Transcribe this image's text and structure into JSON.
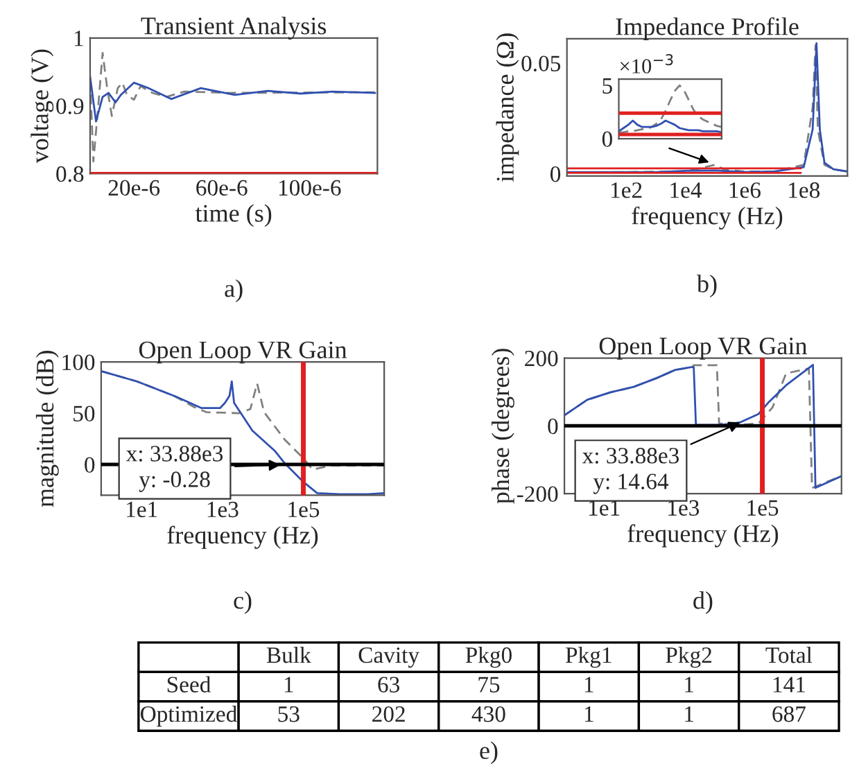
{
  "chart_data": [
    {
      "type": "line",
      "title": "Transient Analysis",
      "xlabel": "time (s)",
      "ylabel": "voltage (V)",
      "annotations": [
        "a)"
      ],
      "xlim": [
        0,
        0.000131
      ],
      "xticks": [
        {
          "value": 2e-05,
          "label": "20e-6"
        },
        {
          "value": 6e-05,
          "label": "60e-6"
        },
        {
          "value": 0.0001,
          "label": "100e-6"
        }
      ],
      "ylim": [
        0.8,
        1
      ],
      "yticks": [
        0.8,
        0.9,
        1
      ],
      "grid": false,
      "ref_lines": [
        {
          "axis": "y",
          "value": 0.8,
          "color": "#e02020"
        }
      ],
      "series": [
        {
          "color": "#808080",
          "line_style": "dashed",
          "x": [
            0,
            1.5e-06,
            3.6e-06,
            5.7e-06,
            7.8e-06,
            9.9e-06,
            1.26e-05,
            1.47e-05,
            1.68e-05,
            2e-05,
            2.3e-05,
            2.84e-05,
            3.47e-05,
            4.3e-05,
            6.4e-05,
            0.00013
          ],
          "values": [
            0.939,
            0.818,
            0.895,
            0.978,
            0.926,
            0.885,
            0.926,
            0.934,
            0.916,
            0.909,
            0.929,
            0.919,
            0.913,
            0.921,
            0.919,
            0.92
          ]
        },
        {
          "color": "#3050b0",
          "line_style": "solid",
          "x": [
            0,
            2.7e-06,
            5.7e-06,
            8.4e-06,
            1.16e-05,
            1.4e-05,
            2e-05,
            2.6e-05,
            3.7e-05,
            5.05e-05,
            6.6e-05,
            8.1e-05,
            9.6e-05,
            0.0001105,
            0.00013
          ],
          "values": [
            0.943,
            0.877,
            0.913,
            0.919,
            0.905,
            0.916,
            0.934,
            0.927,
            0.91,
            0.926,
            0.916,
            0.922,
            0.918,
            0.921,
            0.919
          ]
        }
      ]
    },
    {
      "type": "line",
      "title": "Impedance Profile",
      "xlabel": "frequency (Hz)",
      "ylabel": "impedance (Ω)",
      "annotations": [
        "b)"
      ],
      "log": "x",
      "xlim": [
        1,
        3000000000
      ],
      "xticks": [
        {
          "value": 100,
          "label": "1e2"
        },
        {
          "value": 10000,
          "label": "1e4"
        },
        {
          "value": 1000000,
          "label": "1e6"
        },
        {
          "value": 100000000,
          "label": "1e8"
        }
      ],
      "ylim": [
        -0.001,
        0.061
      ],
      "yticks": [
        0,
        0.05
      ],
      "grid": false,
      "series": [
        {
          "color": "#808080",
          "line_style": "dashed",
          "x": [
            1,
            10000,
            100000,
            200000,
            1000000,
            10000000,
            100000000,
            200000000,
            250000000,
            300000000,
            500000000,
            1000000000,
            3000000000
          ],
          "values": [
            0.0006,
            0.001,
            0.004,
            0.002,
            0.001,
            0.001,
            0.004,
            0.03,
            0.058,
            0.02,
            0.004,
            0.002,
            0.001
          ]
        },
        {
          "color": "#3050b0",
          "line_style": "solid",
          "x": [
            1,
            1000,
            10000,
            100000,
            1000000,
            10000000,
            100000000,
            200000000,
            270000000,
            350000000,
            500000000,
            1000000000,
            3000000000
          ],
          "values": [
            0.0007,
            0.0007,
            0.0013,
            0.0015,
            0.0008,
            0.001,
            0.003,
            0.02,
            0.059,
            0.02,
            0.005,
            0.002,
            0.001
          ]
        },
        {
          "color": "#e02020",
          "line_style": "solid",
          "x": [
            1,
            80000000
          ],
          "values": [
            0.0024,
            0.0024
          ]
        },
        {
          "color": "#e02020",
          "line_style": "solid",
          "x": [
            1,
            80000000
          ],
          "values": [
            0.0004,
            0.0004
          ]
        }
      ]
    },
    {
      "type": "line",
      "annotations": [
        "×10$^{−3}$"
      ],
      "tick_labels": "y",
      "categories": [
        null,
        null,
        null,
        null,
        null,
        null,
        null,
        null,
        null,
        null,
        null,
        null,
        null,
        null,
        null,
        null,
        null,
        null,
        null,
        null,
        null,
        null,
        null
      ],
      "ylim": [
        0,
        5.6
      ],
      "yticks": [
        0,
        5
      ],
      "grid": false,
      "ref_lines": [
        {
          "axis": "y",
          "value": 2.4,
          "color": "#e02020"
        },
        {
          "axis": "y",
          "value": 0.4,
          "color": "#e02020"
        }
      ],
      "series": [
        {
          "color": "#808080",
          "line_style": "dashed",
          "values": [
            0.6,
            0.6,
            0.7,
            0.7,
            0.8,
            0.9,
            0.9,
            1.1,
            1.4,
            1.8,
            2.6,
            3.6,
            4.5,
            5.0,
            4.5,
            3.6,
            2.7,
            2.1,
            1.8,
            1.6,
            1.4,
            1.2,
            1.1
          ]
        },
        {
          "color": "#3050b0",
          "line_style": "solid",
          "values": [
            0.7,
            1.0,
            1.3,
            1.7,
            1.3,
            1.1,
            1.1,
            1.1,
            1.2,
            1.4,
            1.7,
            1.5,
            1.3,
            1.0,
            0.9,
            0.8,
            0.8,
            0.8,
            0.7,
            0.7,
            0.7,
            0.7,
            0.6
          ]
        }
      ]
    },
    {
      "type": "line",
      "title": "Open Loop VR Gain",
      "xlabel": "frequency (Hz)",
      "ylabel": "magnitude (dB)",
      "log": "x",
      "annotations": [
        "c)",
        {
          "text": "x: 33.88e3\ny: -0.28",
          "x": 33880,
          "y": -0.28
        }
      ],
      "xlim": [
        1,
        10000000
      ],
      "xticks": [
        {
          "value": 10,
          "label": "1e1"
        },
        {
          "value": 1000,
          "label": "1e3"
        },
        {
          "value": 100000,
          "label": "1e5"
        }
      ],
      "ylim": [
        -30,
        100
      ],
      "yticks": [
        0,
        50,
        100
      ],
      "grid": false,
      "ref_lines": [
        {
          "axis": "x",
          "value": 100000,
          "color": "#e02020"
        },
        {
          "axis": "y",
          "value": 0,
          "color": "#000000"
        }
      ],
      "series": [
        {
          "color": "#808080",
          "line_style": "dashed",
          "x": [
            1,
            7.7,
            63,
            200,
            400,
            2500,
            4900,
            7200,
            10700,
            35000,
            100000,
            170000,
            490000,
            10000000
          ],
          "values": [
            91,
            81,
            67,
            56,
            51,
            50,
            54,
            79,
            51,
            24,
            6,
            -5,
            -1,
            -1
          ]
        },
        {
          "color": "#3050b0",
          "line_style": "solid",
          "x": [
            1,
            7.7,
            63,
            305,
            870,
            1150,
            1490,
            1700,
            1940,
            5500,
            20000,
            35000,
            100000,
            220000,
            800000,
            4000000,
            10000000
          ],
          "values": [
            91,
            81,
            67,
            55,
            55,
            60,
            67,
            81,
            60,
            33,
            13,
            1,
            -17,
            -28,
            -29,
            -29,
            -28
          ]
        }
      ]
    },
    {
      "type": "line",
      "title": "Open Loop VR Gain",
      "xlabel": "frequency (Hz)",
      "ylabel": "phase (degrees)",
      "log": "x",
      "annotations": [
        "d)",
        {
          "text": "x: 33.88e3\ny: 14.64",
          "x": 33880,
          "y": 14.64
        }
      ],
      "xlim": [
        1,
        10000000
      ],
      "xticks": [
        {
          "value": 10,
          "label": "1e1"
        },
        {
          "value": 1000,
          "label": "1e3"
        },
        {
          "value": 100000,
          "label": "1e5"
        }
      ],
      "ylim": [
        -200,
        200
      ],
      "yticks": [
        -200,
        0,
        200
      ],
      "grid": false,
      "ref_lines": [
        {
          "axis": "x",
          "value": 100000,
          "color": "#e02020"
        },
        {
          "axis": "y",
          "value": 0,
          "color": "#000000"
        }
      ],
      "series": [
        {
          "color": "#808080",
          "line_style": "dashed",
          "x": [
            1,
            3.8,
            14.7,
            56,
            215,
            630,
            1600,
            1850,
            7100,
            8100,
            27000,
            80000,
            180000,
            400000,
            1500000,
            1800000,
            10000000
          ],
          "values": [
            31,
            77,
            99,
            115,
            141,
            165,
            173,
            179,
            179,
            7,
            3,
            7,
            54,
            155,
            169,
            -183,
            -148
          ]
        },
        {
          "color": "#3050b0",
          "line_style": "solid",
          "x": [
            1,
            3.8,
            14.7,
            56,
            215,
            630,
            1600,
            1850,
            2100,
            9200,
            27000,
            80000,
            140000,
            400000,
            1900000,
            2200000,
            10000000
          ],
          "values": [
            31,
            77,
            99,
            115,
            141,
            165,
            173,
            173,
            3,
            3,
            10,
            35,
            68,
            120,
            180,
            -183,
            -148
          ]
        }
      ]
    },
    {
      "type": "other",
      "annotations": [
        "e)"
      ],
      "data_labels": true,
      "legend": "left",
      "categories": [
        "Bulk",
        "Cavity",
        "Pkg0",
        "Pkg1",
        "Pkg2",
        "Total"
      ],
      "series": [
        {
          "name": "Seed",
          "values": [
            1,
            63,
            75,
            1,
            1,
            141
          ]
        },
        {
          "name": "Optimized",
          "values": [
            53,
            202,
            430,
            1,
            1,
            687
          ]
        }
      ]
    }
  ]
}
